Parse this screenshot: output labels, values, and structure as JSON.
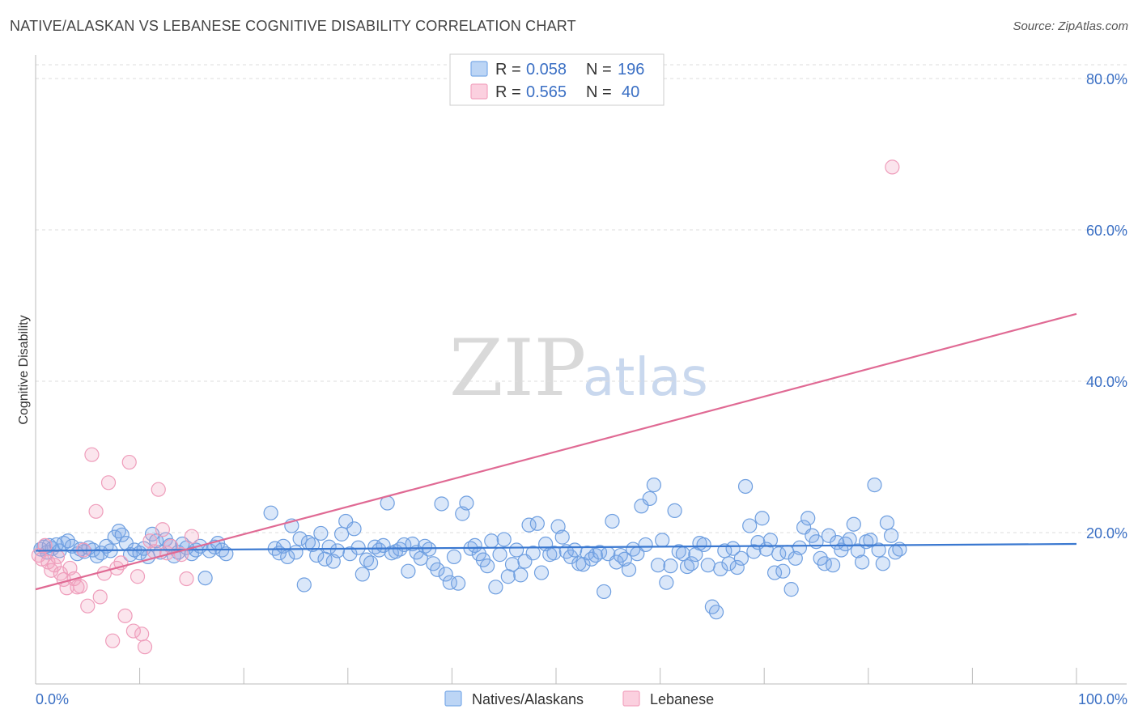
{
  "title": "NATIVE/ALASKAN VS LEBANESE COGNITIVE DISABILITY CORRELATION CHART",
  "source": "Source: ZipAtlas.com",
  "watermark": {
    "zip": "ZIP",
    "atlas": "atlas"
  },
  "legend": {
    "rows": [
      {
        "r_label": "R =",
        "r_value": "0.058",
        "n_label": "N =",
        "n_value": "196",
        "color": "#7aaae8"
      },
      {
        "r_label": "R =",
        "r_value": "0.565",
        "n_label": "N =",
        "n_value": " 40",
        "color": "#f2a3bf"
      }
    ]
  },
  "bottom_legend": [
    {
      "label": "Natives/Alaskans",
      "color": "#7aaae8"
    },
    {
      "label": "Lebanese",
      "color": "#f2a3bf"
    }
  ],
  "chart_data": {
    "type": "scatter",
    "title": "NATIVE/ALASKAN VS LEBANESE COGNITIVE DISABILITY CORRELATION CHART",
    "xlabel": "",
    "ylabel": "Cognitive Disability",
    "xlim": [
      0,
      100
    ],
    "ylim": [
      0,
      80
    ],
    "x_tick_labels": [
      "0.0%",
      "100.0%"
    ],
    "y_ticks": [
      20,
      40,
      60,
      80
    ],
    "y_tick_labels": [
      "20.0%",
      "40.0%",
      "60.0%",
      "80.0%"
    ],
    "grid": "horizontal dashed",
    "legend_position": "top-center",
    "series": [
      {
        "name": "Natives/Alaskans",
        "color": "#7aaae8",
        "trend": {
          "x": [
            0,
            100
          ],
          "y": [
            17.6,
            18.5
          ],
          "color": "#3a78d0"
        },
        "points": [
          [
            0.5,
            17.8
          ],
          [
            0.8,
            18.1
          ],
          [
            1.1,
            17.4
          ],
          [
            1.3,
            18.3
          ],
          [
            1.6,
            17.9
          ],
          [
            2.0,
            18.4
          ],
          [
            2.3,
            17.6
          ],
          [
            2.7,
            18.6
          ],
          [
            3.1,
            18.9
          ],
          [
            3.5,
            18.2
          ],
          [
            4.0,
            17.2
          ],
          [
            4.3,
            17.8
          ],
          [
            4.7,
            17.5
          ],
          [
            5.1,
            18.0
          ],
          [
            5.5,
            17.7
          ],
          [
            5.9,
            16.9
          ],
          [
            6.3,
            17.3
          ],
          [
            6.8,
            18.2
          ],
          [
            7.2,
            17.6
          ],
          [
            7.6,
            19.4
          ],
          [
            8.0,
            20.2
          ],
          [
            8.3,
            19.7
          ],
          [
            8.7,
            18.6
          ],
          [
            9.1,
            17.1
          ],
          [
            9.5,
            17.7
          ],
          [
            10.0,
            17.3
          ],
          [
            10.4,
            17.9
          ],
          [
            10.8,
            16.8
          ],
          [
            11.2,
            19.8
          ],
          [
            11.6,
            18.9
          ],
          [
            12.0,
            17.4
          ],
          [
            12.5,
            19.1
          ],
          [
            12.9,
            18.3
          ],
          [
            13.3,
            16.9
          ],
          [
            13.7,
            17.4
          ],
          [
            14.1,
            18.5
          ],
          [
            14.5,
            18.0
          ],
          [
            15.0,
            17.2
          ],
          [
            15.4,
            17.7
          ],
          [
            15.8,
            18.2
          ],
          [
            16.3,
            14.0
          ],
          [
            16.7,
            17.6
          ],
          [
            17.2,
            18.1
          ],
          [
            17.5,
            18.6
          ],
          [
            17.9,
            17.7
          ],
          [
            18.3,
            17.2
          ],
          [
            22.6,
            22.6
          ],
          [
            23.0,
            17.9
          ],
          [
            23.4,
            17.3
          ],
          [
            23.8,
            18.2
          ],
          [
            24.2,
            16.8
          ],
          [
            24.6,
            20.9
          ],
          [
            25.0,
            17.4
          ],
          [
            25.4,
            19.2
          ],
          [
            25.8,
            13.1
          ],
          [
            26.2,
            18.7
          ],
          [
            26.6,
            18.4
          ],
          [
            27.0,
            17.0
          ],
          [
            27.4,
            19.9
          ],
          [
            27.8,
            16.5
          ],
          [
            28.2,
            18.1
          ],
          [
            28.6,
            16.2
          ],
          [
            29.0,
            17.6
          ],
          [
            29.4,
            19.8
          ],
          [
            29.8,
            21.5
          ],
          [
            30.2,
            17.2
          ],
          [
            30.6,
            20.5
          ],
          [
            31.0,
            18.0
          ],
          [
            31.4,
            14.5
          ],
          [
            31.8,
            16.4
          ],
          [
            32.2,
            16.0
          ],
          [
            32.6,
            18.1
          ],
          [
            33.0,
            17.7
          ],
          [
            33.4,
            18.3
          ],
          [
            33.8,
            23.9
          ],
          [
            34.2,
            17.3
          ],
          [
            34.6,
            17.5
          ],
          [
            35.0,
            17.8
          ],
          [
            35.4,
            18.4
          ],
          [
            35.8,
            14.9
          ],
          [
            36.2,
            18.5
          ],
          [
            36.6,
            17.4
          ],
          [
            37.0,
            16.6
          ],
          [
            37.4,
            18.2
          ],
          [
            37.8,
            17.8
          ],
          [
            38.2,
            15.9
          ],
          [
            38.6,
            15.1
          ],
          [
            39.0,
            23.8
          ],
          [
            39.4,
            14.5
          ],
          [
            39.8,
            13.4
          ],
          [
            40.2,
            16.8
          ],
          [
            40.6,
            13.3
          ],
          [
            41.0,
            22.5
          ],
          [
            41.4,
            23.9
          ],
          [
            41.8,
            17.9
          ],
          [
            42.2,
            18.3
          ],
          [
            42.6,
            17.2
          ],
          [
            43.0,
            16.4
          ],
          [
            43.4,
            15.6
          ],
          [
            43.8,
            18.9
          ],
          [
            44.2,
            12.8
          ],
          [
            44.6,
            17.1
          ],
          [
            45.0,
            19.1
          ],
          [
            45.4,
            14.2
          ],
          [
            45.8,
            15.8
          ],
          [
            46.2,
            17.7
          ],
          [
            46.6,
            14.4
          ],
          [
            47.0,
            16.2
          ],
          [
            47.4,
            21.0
          ],
          [
            47.8,
            17.3
          ],
          [
            48.2,
            21.2
          ],
          [
            48.6,
            14.7
          ],
          [
            49.0,
            18.5
          ],
          [
            49.4,
            17.1
          ],
          [
            49.8,
            17.3
          ],
          [
            50.2,
            20.8
          ],
          [
            50.6,
            19.4
          ],
          [
            51.0,
            17.5
          ],
          [
            51.4,
            16.8
          ],
          [
            51.8,
            17.7
          ],
          [
            52.2,
            15.9
          ],
          [
            52.6,
            15.8
          ],
          [
            53.0,
            17.3
          ],
          [
            53.4,
            16.5
          ],
          [
            53.8,
            17.0
          ],
          [
            54.2,
            17.4
          ],
          [
            54.6,
            12.2
          ],
          [
            55.0,
            17.2
          ],
          [
            55.4,
            21.5
          ],
          [
            55.8,
            16.1
          ],
          [
            56.2,
            17.0
          ],
          [
            56.6,
            16.5
          ],
          [
            57.0,
            15.1
          ],
          [
            57.4,
            17.8
          ],
          [
            57.8,
            17.2
          ],
          [
            58.2,
            23.5
          ],
          [
            58.6,
            18.4
          ],
          [
            59.0,
            24.5
          ],
          [
            59.4,
            26.3
          ],
          [
            59.8,
            15.7
          ],
          [
            60.2,
            19.0
          ],
          [
            60.6,
            13.4
          ],
          [
            61.0,
            15.6
          ],
          [
            61.4,
            22.9
          ],
          [
            61.8,
            17.5
          ],
          [
            62.2,
            17.2
          ],
          [
            62.6,
            15.5
          ],
          [
            63.0,
            15.9
          ],
          [
            63.4,
            17.1
          ],
          [
            63.8,
            18.6
          ],
          [
            64.2,
            18.4
          ],
          [
            64.6,
            15.7
          ],
          [
            65.0,
            10.2
          ],
          [
            65.4,
            9.5
          ],
          [
            65.8,
            15.2
          ],
          [
            66.2,
            17.6
          ],
          [
            66.6,
            15.9
          ],
          [
            67.0,
            17.9
          ],
          [
            67.4,
            15.4
          ],
          [
            67.8,
            16.6
          ],
          [
            68.2,
            26.1
          ],
          [
            68.6,
            20.9
          ],
          [
            69.0,
            17.5
          ],
          [
            69.4,
            18.7
          ],
          [
            69.8,
            21.9
          ],
          [
            70.2,
            17.8
          ],
          [
            70.6,
            19.0
          ],
          [
            71.0,
            14.7
          ],
          [
            71.4,
            17.2
          ],
          [
            71.8,
            14.9
          ],
          [
            72.2,
            17.4
          ],
          [
            72.6,
            12.5
          ],
          [
            73.0,
            16.6
          ],
          [
            73.4,
            18.0
          ],
          [
            73.8,
            20.7
          ],
          [
            74.2,
            21.9
          ],
          [
            74.6,
            19.6
          ],
          [
            75.0,
            18.8
          ],
          [
            75.4,
            16.6
          ],
          [
            75.8,
            15.9
          ],
          [
            76.2,
            19.6
          ],
          [
            76.6,
            15.7
          ],
          [
            77.0,
            18.7
          ],
          [
            77.4,
            17.7
          ],
          [
            77.8,
            18.5
          ],
          [
            78.2,
            19.1
          ],
          [
            78.6,
            21.1
          ],
          [
            79.0,
            17.6
          ],
          [
            79.4,
            16.1
          ],
          [
            79.8,
            18.8
          ],
          [
            80.2,
            19.0
          ],
          [
            80.6,
            26.3
          ],
          [
            81.0,
            17.7
          ],
          [
            81.4,
            15.9
          ],
          [
            81.8,
            21.3
          ],
          [
            82.2,
            19.6
          ],
          [
            82.6,
            17.4
          ],
          [
            83.0,
            17.8
          ]
        ]
      },
      {
        "name": "Lebanese",
        "color": "#f2a3bf",
        "trend": {
          "x": [
            0,
            100
          ],
          "y": [
            12.5,
            48.9
          ],
          "color": "#e06a94"
        },
        "points": [
          [
            0.3,
            17.0
          ],
          [
            0.6,
            16.5
          ],
          [
            0.9,
            18.3
          ],
          [
            1.2,
            16.1
          ],
          [
            1.5,
            15.0
          ],
          [
            1.8,
            15.7
          ],
          [
            2.1,
            16.8
          ],
          [
            2.4,
            14.6
          ],
          [
            2.7,
            13.8
          ],
          [
            3.0,
            12.7
          ],
          [
            3.3,
            15.3
          ],
          [
            3.7,
            13.9
          ],
          [
            4.0,
            12.8
          ],
          [
            4.3,
            12.9
          ],
          [
            4.6,
            17.7
          ],
          [
            5.0,
            10.3
          ],
          [
            5.4,
            30.3
          ],
          [
            5.8,
            22.8
          ],
          [
            6.2,
            11.5
          ],
          [
            6.6,
            14.6
          ],
          [
            7.0,
            26.6
          ],
          [
            7.4,
            5.7
          ],
          [
            7.8,
            15.3
          ],
          [
            8.2,
            16.0
          ],
          [
            8.6,
            9.0
          ],
          [
            9.0,
            29.3
          ],
          [
            9.4,
            7.0
          ],
          [
            9.8,
            14.2
          ],
          [
            10.2,
            6.6
          ],
          [
            10.5,
            4.9
          ],
          [
            11.0,
            18.9
          ],
          [
            11.4,
            17.5
          ],
          [
            11.8,
            25.7
          ],
          [
            12.2,
            20.4
          ],
          [
            12.6,
            17.3
          ],
          [
            13.0,
            18.2
          ],
          [
            14.0,
            17.1
          ],
          [
            14.5,
            13.9
          ],
          [
            15.0,
            19.5
          ],
          [
            82.3,
            68.3
          ]
        ]
      }
    ]
  }
}
